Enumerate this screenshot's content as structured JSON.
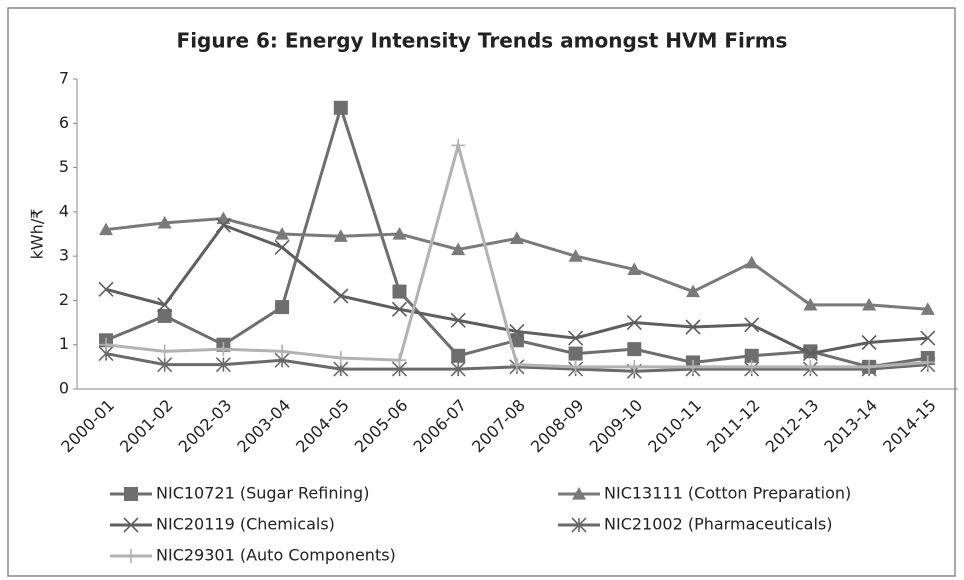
{
  "chart_data": {
    "type": "line",
    "title": "Figure 6: Energy Intensity Trends amongst HVM Firms",
    "y_label": "kWh/₹",
    "categories": [
      "2000-01",
      "2001-02",
      "2002-03",
      "2003-04",
      "2004-05",
      "2005-06",
      "2006-07",
      "2007-08",
      "2008-09",
      "2009-10",
      "2010-11",
      "2011-12",
      "2012-13",
      "2013-14",
      "2014-15"
    ],
    "ylim": [
      0,
      7
    ],
    "yticks": [
      0,
      1,
      2,
      3,
      4,
      5,
      6,
      7
    ],
    "grid": false,
    "legend": "bottom",
    "series": [
      {
        "name": "NIC10721 (Sugar Refining)",
        "color": "#6e6e6e",
        "marker": "square",
        "values": [
          1.1,
          1.65,
          1.0,
          1.85,
          6.35,
          2.2,
          0.75,
          1.1,
          0.8,
          0.9,
          0.6,
          0.75,
          0.85,
          0.5,
          0.7
        ]
      },
      {
        "name": "NIC13111 (Cotton Preparation)",
        "color": "#7a7a7a",
        "marker": "triangle",
        "values": [
          3.6,
          3.75,
          3.85,
          3.5,
          3.45,
          3.5,
          3.15,
          3.4,
          3.0,
          2.7,
          2.2,
          2.85,
          1.9,
          1.9,
          1.8
        ]
      },
      {
        "name": "NIC20119 (Chemicals)",
        "color": "#5e5e5e",
        "marker": "x",
        "values": [
          2.25,
          1.9,
          3.7,
          3.2,
          2.1,
          1.8,
          1.55,
          1.3,
          1.15,
          1.5,
          1.4,
          1.45,
          0.8,
          1.05,
          1.15
        ]
      },
      {
        "name": "NIC21002 (Pharmaceuticals)",
        "color": "#6a6a6a",
        "marker": "star",
        "values": [
          0.8,
          0.55,
          0.55,
          0.65,
          0.45,
          0.45,
          0.45,
          0.5,
          0.45,
          0.4,
          0.45,
          0.45,
          0.45,
          0.45,
          0.55
        ]
      },
      {
        "name": "NIC29301 (Auto Components)",
        "color": "#b2b2b2",
        "marker": "plus",
        "values": [
          1.0,
          0.85,
          0.9,
          0.85,
          0.7,
          0.65,
          5.5,
          0.55,
          0.5,
          0.5,
          0.5,
          0.5,
          0.5,
          0.5,
          0.6
        ]
      }
    ]
  }
}
